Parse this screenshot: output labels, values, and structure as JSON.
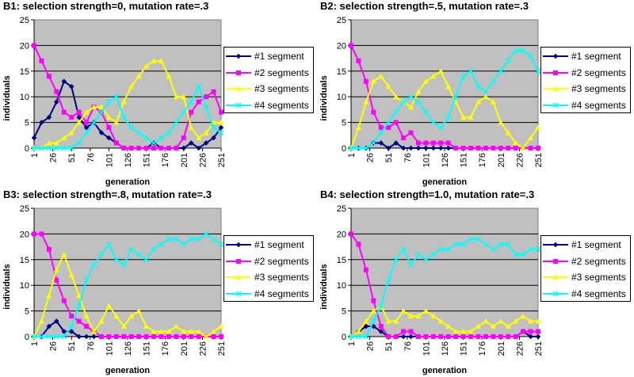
{
  "colors": {
    "plot_bg": "#c0c0c0",
    "seg1": "#000080",
    "seg2": "#ff00ff",
    "seg3": "#ffff00",
    "seg4": "#00ffff"
  },
  "legend": [
    "#1 segment",
    "#2 segments",
    "#3 segments",
    "#4 segments"
  ],
  "chart_data": [
    {
      "type": "line",
      "title": "B1: selection strength=0, mutation rate=.3",
      "xlabel": "generation",
      "ylabel": "individuals",
      "ylim": [
        0,
        25
      ],
      "yticks": [
        0,
        5,
        10,
        15,
        20,
        25
      ],
      "xticks": [
        1,
        26,
        51,
        76,
        101,
        126,
        151,
        176,
        201,
        226,
        251
      ],
      "x": [
        1,
        11,
        21,
        31,
        41,
        51,
        61,
        71,
        81,
        91,
        101,
        111,
        121,
        131,
        141,
        151,
        161,
        171,
        181,
        191,
        201,
        211,
        221,
        231,
        241,
        251
      ],
      "series": [
        {
          "name": "#1 segment",
          "values": [
            2,
            5,
            6,
            9,
            13,
            12,
            6,
            4,
            5,
            3,
            2,
            1,
            0,
            0,
            0,
            0,
            1,
            0,
            0,
            0,
            0,
            1,
            0,
            1,
            2,
            4
          ]
        },
        {
          "name": "#2 segments",
          "values": [
            20,
            17,
            14,
            11,
            7,
            6,
            7,
            5,
            8,
            7,
            4,
            1,
            0,
            0,
            0,
            0,
            0,
            0,
            0,
            0,
            2,
            7,
            9,
            10,
            11,
            7
          ]
        },
        {
          "name": "#3 segments",
          "values": [
            0,
            0,
            1,
            1,
            2,
            3,
            5,
            7,
            8,
            8,
            6,
            5,
            9,
            12,
            14,
            16,
            17,
            17,
            14,
            10,
            10,
            4,
            2,
            3,
            5,
            5
          ]
        },
        {
          "name": "#4 segments",
          "values": [
            0,
            0,
            0,
            0,
            0,
            0,
            1,
            3,
            5,
            7,
            9,
            10,
            6,
            4,
            3,
            2,
            1,
            2,
            3,
            5,
            7,
            9,
            12,
            8,
            4,
            3
          ]
        }
      ]
    },
    {
      "type": "line",
      "title": "B2: selection strength=.5, mutation rate=.3",
      "xlabel": "generation",
      "ylabel": "individuals",
      "ylim": [
        0,
        25
      ],
      "yticks": [
        0,
        5,
        10,
        15,
        20,
        25
      ],
      "xticks": [
        1,
        26,
        51,
        76,
        101,
        126,
        151,
        176,
        201,
        226,
        251
      ],
      "x": [
        1,
        11,
        21,
        31,
        41,
        51,
        61,
        71,
        81,
        91,
        101,
        111,
        121,
        131,
        141,
        151,
        161,
        171,
        181,
        191,
        201,
        211,
        221,
        231,
        241,
        251
      ],
      "series": [
        {
          "name": "#1 segment",
          "values": [
            0,
            0,
            0,
            1,
            1,
            0,
            1,
            0,
            0,
            0,
            0,
            0,
            0,
            0,
            0,
            0,
            0,
            0,
            0,
            0,
            0,
            0,
            0,
            0,
            0,
            0
          ]
        },
        {
          "name": "#2 segments",
          "values": [
            20,
            17,
            13,
            7,
            4,
            4,
            5,
            2,
            3,
            1,
            1,
            1,
            1,
            1,
            0,
            0,
            0,
            0,
            0,
            0,
            0,
            0,
            0,
            0,
            0,
            0
          ]
        },
        {
          "name": "#3 segments",
          "values": [
            0,
            4,
            9,
            13,
            14,
            12,
            10,
            9,
            8,
            11,
            13,
            14,
            15,
            12,
            9,
            6,
            6,
            9,
            10,
            9,
            5,
            3,
            1,
            0,
            2,
            4
          ]
        },
        {
          "name": "#4 segments",
          "values": [
            0,
            0,
            0,
            1,
            3,
            5,
            7,
            9,
            10,
            9,
            7,
            5,
            4,
            6,
            10,
            14,
            15,
            12,
            11,
            13,
            15,
            17,
            19,
            19,
            18,
            15
          ]
        }
      ]
    },
    {
      "type": "line",
      "title": "B3: selection strength=.8, mutation rate=.3",
      "xlabel": "generation",
      "ylabel": "individuals",
      "ylim": [
        0,
        25
      ],
      "yticks": [
        0,
        5,
        10,
        15,
        20,
        25
      ],
      "xticks": [
        1,
        26,
        51,
        76,
        101,
        126,
        151,
        176,
        201,
        226,
        251
      ],
      "x": [
        1,
        11,
        21,
        31,
        41,
        51,
        61,
        71,
        81,
        91,
        101,
        111,
        121,
        131,
        141,
        151,
        161,
        171,
        181,
        191,
        201,
        211,
        221,
        231,
        241,
        251
      ],
      "series": [
        {
          "name": "#1 segment",
          "values": [
            0,
            0,
            2,
            3,
            1,
            1,
            0,
            0,
            0,
            0,
            0,
            0,
            0,
            0,
            0,
            0,
            0,
            0,
            0,
            0,
            0,
            0,
            0,
            0,
            0,
            0
          ]
        },
        {
          "name": "#2 segments",
          "values": [
            20,
            20,
            17,
            11,
            7,
            4,
            3,
            2,
            1,
            0,
            0,
            0,
            0,
            0,
            0,
            0,
            0,
            0,
            0,
            0,
            0,
            0,
            0,
            0,
            0,
            0
          ]
        },
        {
          "name": "#3 segments",
          "values": [
            0,
            3,
            8,
            13,
            16,
            12,
            8,
            4,
            1,
            3,
            6,
            4,
            2,
            4,
            5,
            2,
            1,
            1,
            1,
            2,
            1,
            1,
            1,
            0,
            1,
            2
          ]
        },
        {
          "name": "#4 segments",
          "values": [
            0,
            0,
            0,
            0,
            0,
            2,
            6,
            11,
            14,
            16,
            18,
            15,
            14,
            17,
            16,
            15,
            17,
            18,
            19,
            19,
            18,
            19,
            19,
            20,
            19,
            18
          ]
        }
      ]
    },
    {
      "type": "line",
      "title": "B4: selection strength=1.0, mutation rate=.3",
      "xlabel": "generation",
      "ylabel": "individuals",
      "ylim": [
        0,
        25
      ],
      "yticks": [
        0,
        5,
        10,
        15,
        20,
        25
      ],
      "xticks": [
        1,
        26,
        51,
        76,
        101,
        126,
        151,
        176,
        201,
        226,
        251
      ],
      "x": [
        1,
        11,
        21,
        31,
        41,
        51,
        61,
        71,
        81,
        91,
        101,
        111,
        121,
        131,
        141,
        151,
        161,
        171,
        181,
        191,
        201,
        211,
        221,
        231,
        241,
        251
      ],
      "series": [
        {
          "name": "#1 segment",
          "values": [
            0,
            1,
            2,
            2,
            1,
            0,
            0,
            0,
            0,
            0,
            0,
            0,
            0,
            0,
            0,
            0,
            0,
            0,
            0,
            0,
            0,
            0,
            0,
            1,
            0,
            0
          ]
        },
        {
          "name": "#2 segments",
          "values": [
            20,
            18,
            13,
            7,
            2,
            0,
            0,
            1,
            1,
            0,
            0,
            0,
            0,
            0,
            0,
            0,
            0,
            0,
            0,
            0,
            0,
            0,
            0,
            1,
            1,
            1
          ]
        },
        {
          "name": "#3 segments",
          "values": [
            0,
            1,
            3,
            5,
            6,
            3,
            3,
            5,
            4,
            4,
            5,
            4,
            3,
            2,
            1,
            1,
            1,
            2,
            3,
            2,
            3,
            2,
            3,
            4,
            3,
            3
          ]
        },
        {
          "name": "#4 segments",
          "values": [
            0,
            0,
            0,
            3,
            6,
            11,
            15,
            17,
            14,
            16,
            15,
            16,
            17,
            17,
            18,
            18,
            19,
            19,
            18,
            17,
            18,
            18,
            16,
            16,
            17,
            17
          ]
        }
      ]
    }
  ]
}
